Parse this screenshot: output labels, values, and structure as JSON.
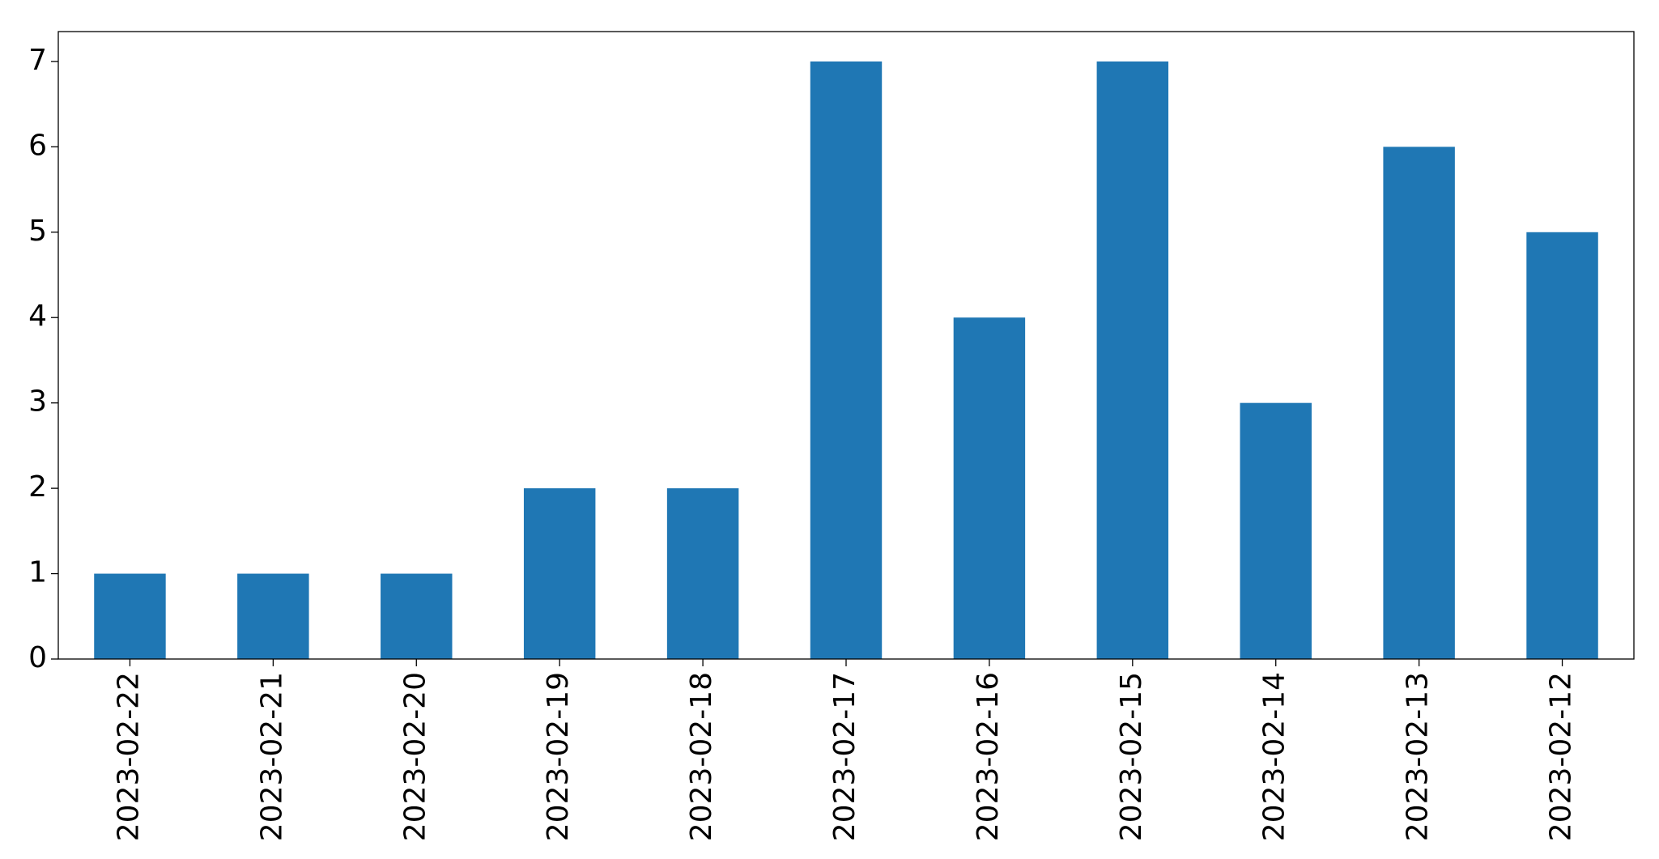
{
  "chart_data": {
    "type": "bar",
    "categories": [
      "2023-02-22",
      "2023-02-21",
      "2023-02-20",
      "2023-02-19",
      "2023-02-18",
      "2023-02-17",
      "2023-02-16",
      "2023-02-15",
      "2023-02-14",
      "2023-02-13",
      "2023-02-12"
    ],
    "values": [
      1,
      1,
      1,
      2,
      2,
      7,
      4,
      7,
      3,
      6,
      5
    ],
    "color": "#1f77b4",
    "ylim": [
      0,
      7.35
    ],
    "yticks": [
      0,
      1,
      2,
      3,
      4,
      5,
      6,
      7
    ],
    "grid": false
  }
}
